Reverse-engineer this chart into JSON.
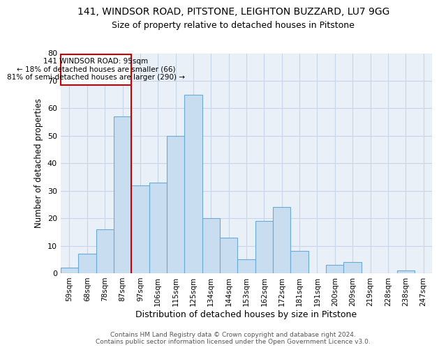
{
  "title1": "141, WINDSOR ROAD, PITSTONE, LEIGHTON BUZZARD, LU7 9GG",
  "title2": "Size of property relative to detached houses in Pitstone",
  "xlabel": "Distribution of detached houses by size in Pitstone",
  "ylabel": "Number of detached properties",
  "bar_color": "#c9ddf0",
  "bar_edge_color": "#6aaad4",
  "categories": [
    "59sqm",
    "68sqm",
    "78sqm",
    "87sqm",
    "97sqm",
    "106sqm",
    "115sqm",
    "125sqm",
    "134sqm",
    "144sqm",
    "153sqm",
    "162sqm",
    "172sqm",
    "181sqm",
    "191sqm",
    "200sqm",
    "209sqm",
    "219sqm",
    "228sqm",
    "238sqm",
    "247sqm"
  ],
  "values": [
    2,
    7,
    16,
    57,
    32,
    33,
    50,
    65,
    20,
    13,
    5,
    19,
    24,
    8,
    0,
    3,
    4,
    0,
    0,
    1,
    0
  ],
  "ylim": [
    0,
    80
  ],
  "yticks": [
    0,
    10,
    20,
    30,
    40,
    50,
    60,
    70,
    80
  ],
  "property_line_index": 4,
  "annotation_title": "141 WINDSOR ROAD: 95sqm",
  "annotation_line1": "← 18% of detached houses are smaller (66)",
  "annotation_line2": "81% of semi-detached houses are larger (290) →",
  "annotation_box_color": "#ffffff",
  "annotation_border_color": "#cc0000",
  "vline_color": "#cc0000",
  "grid_color": "#c8d4e8",
  "bg_color": "#eaf0f8",
  "footnote1": "Contains HM Land Registry data © Crown copyright and database right 2024.",
  "footnote2": "Contains public sector information licensed under the Open Government Licence v3.0."
}
